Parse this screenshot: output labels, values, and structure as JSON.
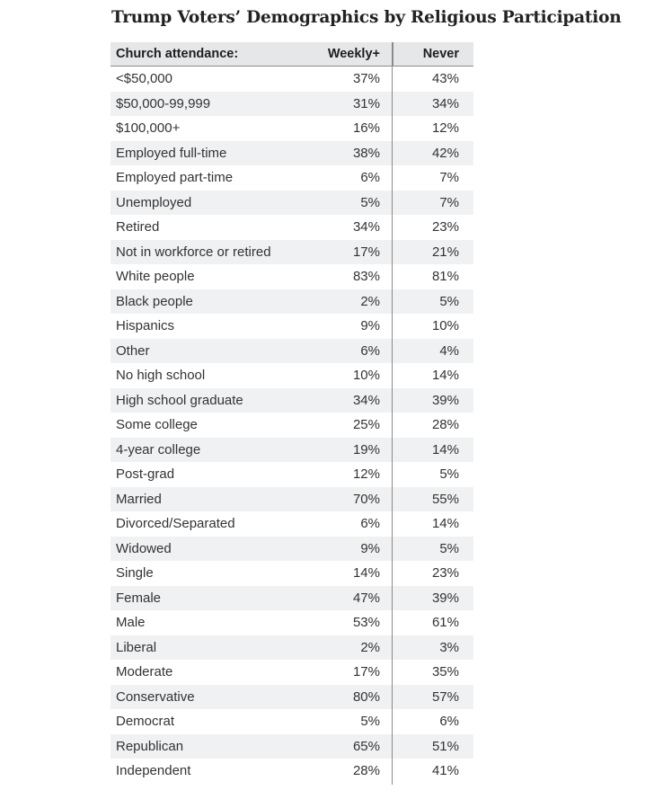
{
  "title": "Trump Voters’ Demographics by Religious Participation",
  "chart_data": {
    "type": "table",
    "title": "Trump Voters’ Demographics by Religious Participation",
    "columns": [
      "Church attendance:",
      "Weekly+",
      "Never"
    ],
    "rows": [
      {
        "label": "<$50,000",
        "weekly": "37%",
        "never": "43%"
      },
      {
        "label": "$50,000-99,999",
        "weekly": "31%",
        "never": "34%"
      },
      {
        "label": "$100,000+",
        "weekly": "16%",
        "never": "12%"
      },
      {
        "label": "Employed full-time",
        "weekly": "38%",
        "never": "42%"
      },
      {
        "label": "Employed part-time",
        "weekly": "6%",
        "never": "7%"
      },
      {
        "label": "Unemployed",
        "weekly": "5%",
        "never": "7%"
      },
      {
        "label": "Retired",
        "weekly": "34%",
        "never": "23%"
      },
      {
        "label": "Not in workforce or retired",
        "weekly": "17%",
        "never": "21%"
      },
      {
        "label": "White people",
        "weekly": "83%",
        "never": "81%"
      },
      {
        "label": "Black people",
        "weekly": "2%",
        "never": "5%"
      },
      {
        "label": "Hispanics",
        "weekly": "9%",
        "never": "10%"
      },
      {
        "label": "Other",
        "weekly": "6%",
        "never": "4%"
      },
      {
        "label": "No high school",
        "weekly": "10%",
        "never": "14%"
      },
      {
        "label": "High school graduate",
        "weekly": "34%",
        "never": "39%"
      },
      {
        "label": "Some college",
        "weekly": "25%",
        "never": "28%"
      },
      {
        "label": "4-year college",
        "weekly": "19%",
        "never": "14%"
      },
      {
        "label": "Post-grad",
        "weekly": "12%",
        "never": "5%"
      },
      {
        "label": "Married",
        "weekly": "70%",
        "never": "55%"
      },
      {
        "label": "Divorced/Separated",
        "weekly": "6%",
        "never": "14%"
      },
      {
        "label": "Widowed",
        "weekly": "9%",
        "never": "5%"
      },
      {
        "label": "Single",
        "weekly": "14%",
        "never": "23%"
      },
      {
        "label": "Female",
        "weekly": "47%",
        "never": "39%"
      },
      {
        "label": "Male",
        "weekly": "53%",
        "never": "61%"
      },
      {
        "label": "Liberal",
        "weekly": "2%",
        "never": "3%"
      },
      {
        "label": "Moderate",
        "weekly": "17%",
        "never": "35%"
      },
      {
        "label": "Conservative",
        "weekly": "80%",
        "never": "57%"
      },
      {
        "label": "Democrat",
        "weekly": "5%",
        "never": "6%"
      },
      {
        "label": "Republican",
        "weekly": "65%",
        "never": "51%"
      },
      {
        "label": "Independent",
        "weekly": "28%",
        "never": "41%"
      }
    ]
  }
}
